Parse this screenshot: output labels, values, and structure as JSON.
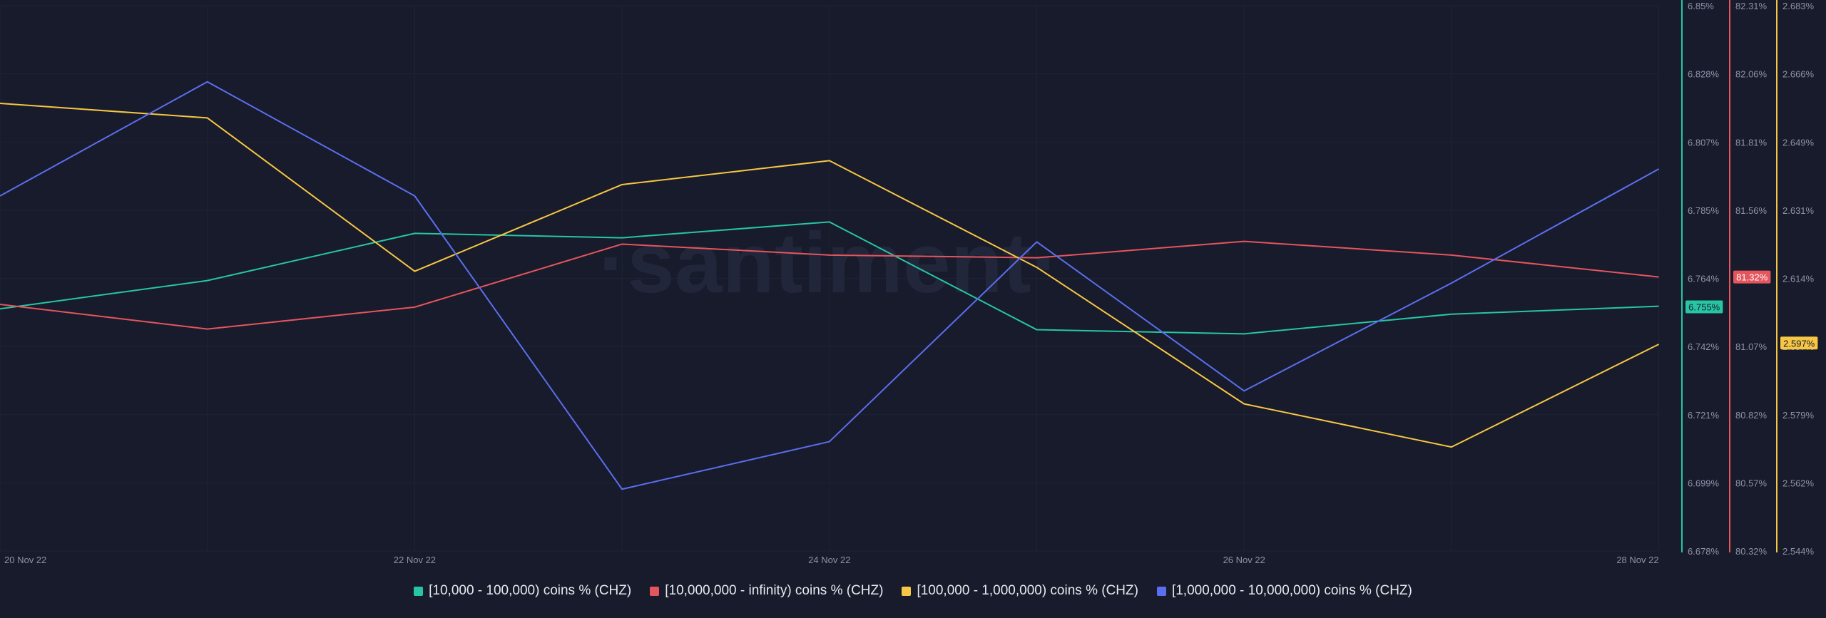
{
  "chart_data": {
    "type": "line",
    "title": "",
    "watermark": "·santiment·",
    "grid": true,
    "x": [
      "20 Nov 22",
      "21 Nov 22",
      "22 Nov 22",
      "23 Nov 22",
      "24 Nov 22",
      "25 Nov 22",
      "26 Nov 22",
      "27 Nov 22",
      "28 Nov 22"
    ],
    "x_tick_labels": [
      "20 Nov 22",
      "22 Nov 22",
      "24 Nov 22",
      "26 Nov 22",
      "28 Nov 22"
    ],
    "axes": [
      {
        "id": "teal",
        "color": "#26c6a4",
        "ylim": [
          6.678,
          6.85
        ],
        "tick_labels": [
          "6.85%",
          "6.828%",
          "6.807%",
          "6.785%",
          "6.764%",
          "6.742%",
          "6.721%",
          "6.699%",
          "6.678%"
        ],
        "current_label": "6.755%",
        "current_value": 6.755
      },
      {
        "id": "red",
        "color": "#e5555e",
        "ylim": [
          80.32,
          82.31
        ],
        "tick_labels": [
          "82.31%",
          "82.06%",
          "81.81%",
          "81.56%",
          "81.32%",
          "81.07%",
          "80.82%",
          "80.57%",
          "80.32%"
        ],
        "current_label": "81.32%",
        "current_value": 81.32
      },
      {
        "id": "yellow",
        "color": "#f6c644",
        "ylim": [
          2.544,
          2.683
        ],
        "tick_labels": [
          "2.683%",
          "2.666%",
          "2.649%",
          "2.631%",
          "2.614%",
          "2.597%",
          "2.579%",
          "2.562%",
          "2.544%"
        ],
        "current_label": "2.597%",
        "current_value": 2.597
      }
    ],
    "series": [
      {
        "name": "[10,000 - 100,000) coins % (CHZ)",
        "color": "#26c6a4",
        "axis": "teal",
        "values": [
          6.7544,
          6.7633,
          6.7782,
          6.7768,
          6.7818,
          6.7478,
          6.7465,
          6.7527,
          6.7552
        ]
      },
      {
        "name": "[10,000,000 - infinity) coins % (CHZ)",
        "color": "#e5555e",
        "axis": "red",
        "values": [
          81.22,
          81.13,
          81.21,
          81.44,
          81.4,
          81.39,
          81.45,
          81.4,
          81.32
        ]
      },
      {
        "name": "[100,000  - 1,000,000) coins % (CHZ)",
        "color": "#f6c644",
        "axis": "yellow",
        "values": [
          2.6581,
          2.6544,
          2.6153,
          2.6374,
          2.6435,
          2.6163,
          2.5815,
          2.5705,
          2.5967
        ]
      },
      {
        "name": "[1,000,000 - 10,000,000) coins % (CHZ)",
        "color": "#5a6ff0",
        "axis": "hidden",
        "values": [
          6.79,
          6.826,
          6.79,
          6.6975,
          6.7125,
          6.7755,
          6.7285,
          6.7625,
          6.7985
        ]
      }
    ]
  }
}
